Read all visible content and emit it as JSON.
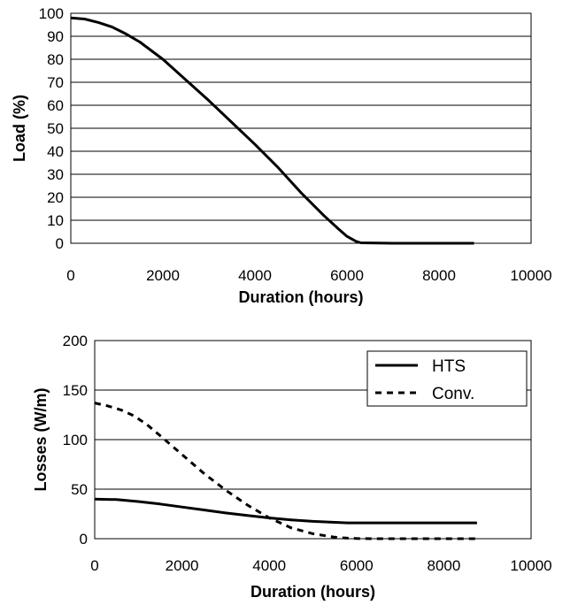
{
  "chart_data": [
    {
      "type": "line",
      "title": "",
      "xlabel": "Duration (hours)",
      "ylabel": "Load (%)",
      "xlim": [
        0,
        10000
      ],
      "ylim": [
        0,
        100
      ],
      "x_ticks": [
        "0",
        "2000",
        "4000",
        "6000",
        "8000",
        "10000"
      ],
      "y_ticks": [
        "0",
        "10",
        "20",
        "30",
        "40",
        "50",
        "60",
        "70",
        "80",
        "90",
        "100"
      ],
      "grid": "horizontal",
      "series": [
        {
          "name": "",
          "style": "solid",
          "color": "#000000",
          "x": [
            0,
            300,
            600,
            900,
            1200,
            1500,
            2000,
            2500,
            3000,
            3500,
            4000,
            4500,
            5000,
            5500,
            5800,
            6000,
            6200,
            6300,
            7000,
            8000,
            8760
          ],
          "y": [
            98,
            97.5,
            96,
            94,
            91,
            87.5,
            80,
            71,
            62,
            52.5,
            43,
            33,
            22,
            12,
            6.5,
            3,
            0.8,
            0.2,
            0,
            0,
            0
          ]
        }
      ]
    },
    {
      "type": "line",
      "title": "",
      "xlabel": "Duration (hours)",
      "ylabel": "Losses (W/m)",
      "xlim": [
        0,
        10000
      ],
      "ylim": [
        0,
        200
      ],
      "x_ticks": [
        "0",
        "2000",
        "4000",
        "6000",
        "8000",
        "10000"
      ],
      "y_ticks": [
        "0",
        "50",
        "100",
        "150",
        "200"
      ],
      "grid": "horizontal",
      "legend": "top-right",
      "series": [
        {
          "name": "HTS",
          "style": "solid",
          "color": "#000000",
          "x": [
            0,
            500,
            1000,
            1500,
            2000,
            2500,
            3000,
            3500,
            4000,
            4500,
            5000,
            5500,
            5800,
            6000,
            7000,
            8000,
            8760
          ],
          "y": [
            40,
            39.5,
            37.5,
            35,
            32,
            29,
            26,
            23.5,
            21,
            19,
            17.5,
            16.5,
            16,
            16,
            16,
            16,
            16
          ]
        },
        {
          "name": "Conv.",
          "style": "dashed",
          "color": "#000000",
          "x": [
            0,
            300,
            600,
            900,
            1200,
            1500,
            2000,
            2500,
            3000,
            3500,
            4000,
            4500,
            5000,
            5500,
            5800,
            6000,
            6500,
            7000,
            8000,
            8760
          ],
          "y": [
            137,
            134,
            130,
            124,
            115,
            104,
            85,
            66,
            49,
            34,
            21,
            11,
            5,
            1.5,
            0.5,
            0.2,
            0,
            0,
            0,
            0
          ]
        }
      ]
    }
  ]
}
